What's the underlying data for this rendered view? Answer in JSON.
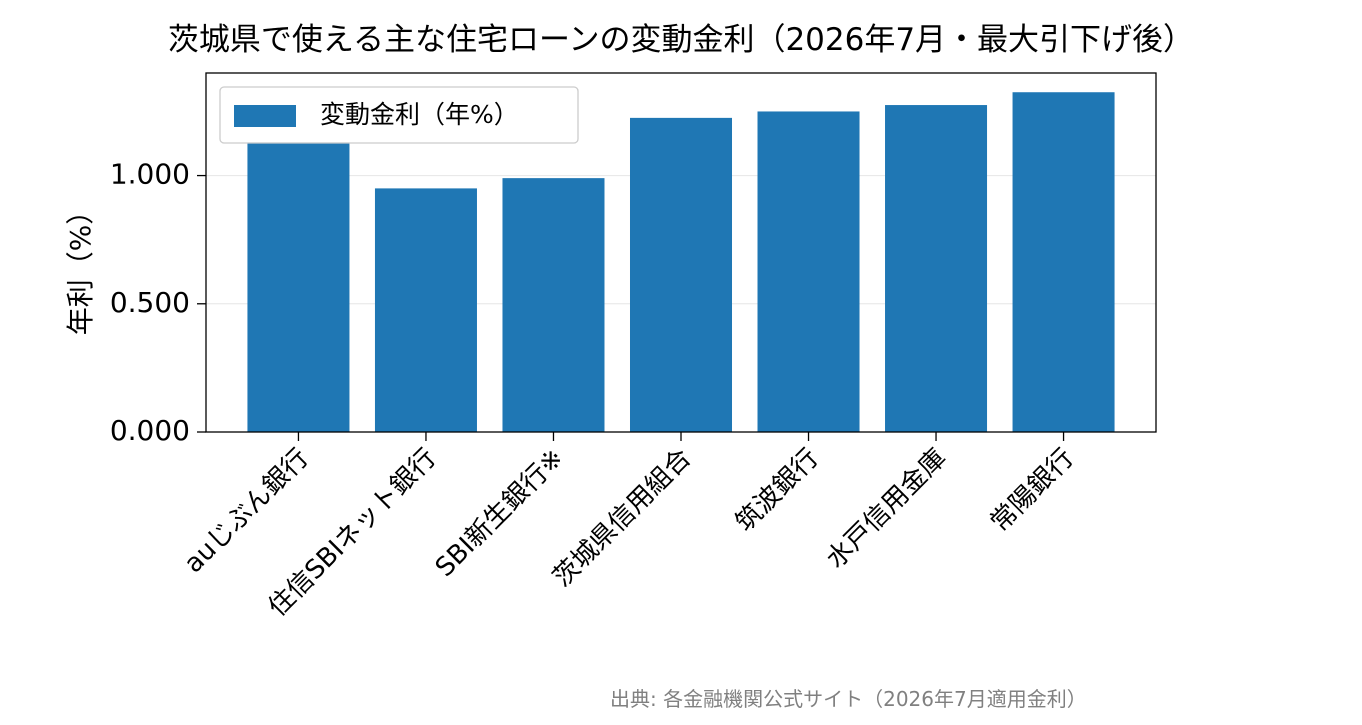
{
  "chart_data": {
    "type": "bar",
    "title": "茨城県で使える主な住宅ローンの変動金利（2026年7月・最大引下げ後）",
    "xlabel": "",
    "ylabel": "年利（%）",
    "categories": [
      "auじぶん銀行",
      "住信SBIネット銀行",
      "SBI新生銀行※",
      "茨城県信用組合",
      "筑波銀行",
      "水戸信用金庫",
      "常陽銀行"
    ],
    "series": [
      {
        "name": "変動金利（年%）",
        "values": [
          1.13,
          0.95,
          0.99,
          1.225,
          1.25,
          1.275,
          1.325
        ],
        "color": "#1f77b4"
      }
    ],
    "ylim": [
      0,
      1.4
    ],
    "yticks": [
      "0.000",
      "0.500",
      "1.000"
    ],
    "ytick_values": [
      0,
      0.5,
      1.0
    ],
    "grid": "horizontal",
    "legend_position": "upper-left"
  },
  "source": "出典: 各金融機関公式サイト（2026年7月適用金利）"
}
